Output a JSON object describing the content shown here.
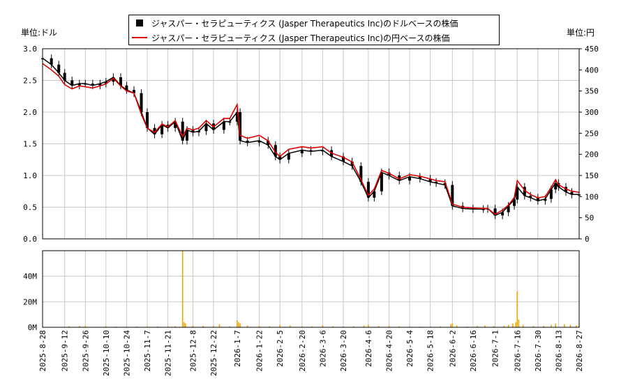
{
  "legend": {
    "series_usd": "ジャスパー・セラピューティクス (Jasper Therapeutics Inc)のドルベースの株価",
    "series_jpy": "ジャスパー・セラピューティクス (Jasper Therapeutics Inc)の円ベースの株価"
  },
  "units": {
    "left": "単位:ドル",
    "right": "単位:円"
  },
  "colors": {
    "usd_candles": "#000000",
    "jpy_line": "#e00000",
    "volume": "#f5a300",
    "grid": "#c8c8c8"
  },
  "chart_data": [
    {
      "type": "line",
      "description_series": [
        "USD candlestick price",
        "JPY line price"
      ],
      "x_ticks": [
        "2025-8-28",
        "2025-9-12",
        "2025-9-26",
        "2025-10-10",
        "2025-10-24",
        "2025-11-7",
        "2025-11-21",
        "2025-12-8",
        "2025-12-22",
        "2026-1-7",
        "2026-1-22",
        "2026-2-5",
        "2026-2-20",
        "2026-3-6",
        "2026-3-20",
        "2026-4-6",
        "2026-4-20",
        "2026-5-4",
        "2026-5-18",
        "2026-6-2",
        "2026-6-16",
        "2026-7-1",
        "2026-7-16",
        "2026-7-30",
        "2026-8-13",
        "2026-8-27"
      ],
      "y_left_ticks": [
        "0.0",
        "0.5",
        "1.0",
        "1.5",
        "2.0",
        "2.5",
        "3.0"
      ],
      "y_left_lim": [
        0,
        3.0
      ],
      "y_right_ticks": [
        "0",
        "50",
        "100",
        "150",
        "200",
        "250",
        "300",
        "350",
        "400",
        "450"
      ],
      "y_right_lim": [
        0,
        450
      ],
      "series": [
        {
          "name": "ジャスパー・セラピューティクス (Jasper Therapeutics Inc)のドルベースの株価",
          "axis": "left",
          "points": [
            [
              "2025-8-28",
              2.85
            ],
            [
              "2025-9-3",
              2.75
            ],
            [
              "2025-9-8",
              2.62
            ],
            [
              "2025-9-12",
              2.5
            ],
            [
              "2025-9-17",
              2.42
            ],
            [
              "2025-9-22",
              2.45
            ],
            [
              "2025-9-26",
              2.45
            ],
            [
              "2025-10-1",
              2.42
            ],
            [
              "2025-10-6",
              2.45
            ],
            [
              "2025-10-10",
              2.48
            ],
            [
              "2025-10-15",
              2.55
            ],
            [
              "2025-10-20",
              2.42
            ],
            [
              "2025-10-24",
              2.35
            ],
            [
              "2025-10-29",
              2.3
            ],
            [
              "2025-11-3",
              2.0
            ],
            [
              "2025-11-7",
              1.75
            ],
            [
              "2025-11-12",
              1.65
            ],
            [
              "2025-11-17",
              1.8
            ],
            [
              "2025-11-21",
              1.75
            ],
            [
              "2025-11-26",
              1.85
            ],
            [
              "2025-12-1",
              1.55
            ],
            [
              "2025-12-4",
              1.72
            ],
            [
              "2025-12-8",
              1.68
            ],
            [
              "2025-12-12",
              1.7
            ],
            [
              "2025-12-17",
              1.82
            ],
            [
              "2025-12-22",
              1.72
            ],
            [
              "2025-12-29",
              1.85
            ],
            [
              "2026-1-2",
              1.85
            ],
            [
              "2026-1-7",
              2.0
            ],
            [
              "2026-1-9",
              1.55
            ],
            [
              "2026-1-14",
              1.52
            ],
            [
              "2026-1-22",
              1.55
            ],
            [
              "2026-1-28",
              1.48
            ],
            [
              "2026-2-2",
              1.3
            ],
            [
              "2026-2-5",
              1.25
            ],
            [
              "2026-2-11",
              1.35
            ],
            [
              "2026-2-20",
              1.4
            ],
            [
              "2026-2-26",
              1.38
            ],
            [
              "2026-3-6",
              1.4
            ],
            [
              "2026-3-12",
              1.3
            ],
            [
              "2026-3-20",
              1.22
            ],
            [
              "2026-3-26",
              1.15
            ],
            [
              "2026-4-1",
              0.9
            ],
            [
              "2026-4-6",
              0.65
            ],
            [
              "2026-4-10",
              0.75
            ],
            [
              "2026-4-15",
              1.05
            ],
            [
              "2026-4-20",
              1.0
            ],
            [
              "2026-4-27",
              0.92
            ],
            [
              "2026-5-4",
              0.98
            ],
            [
              "2026-5-11",
              0.95
            ],
            [
              "2026-5-18",
              0.9
            ],
            [
              "2026-5-22",
              0.88
            ],
            [
              "2026-5-28",
              0.85
            ],
            [
              "2026-6-2",
              0.52
            ],
            [
              "2026-6-9",
              0.48
            ],
            [
              "2026-6-16",
              0.47
            ],
            [
              "2026-6-23",
              0.47
            ],
            [
              "2026-6-26",
              0.48
            ],
            [
              "2026-7-1",
              0.37
            ],
            [
              "2026-7-6",
              0.42
            ],
            [
              "2026-7-10",
              0.52
            ],
            [
              "2026-7-14",
              0.62
            ],
            [
              "2026-7-16",
              0.82
            ],
            [
              "2026-7-21",
              0.68
            ],
            [
              "2026-7-25",
              0.65
            ],
            [
              "2026-7-30",
              0.6
            ],
            [
              "2026-8-4",
              0.63
            ],
            [
              "2026-8-8",
              0.78
            ],
            [
              "2026-8-11",
              0.88
            ],
            [
              "2026-8-13",
              0.82
            ],
            [
              "2026-8-18",
              0.74
            ],
            [
              "2026-8-22",
              0.7
            ],
            [
              "2026-8-27",
              0.7
            ]
          ]
        },
        {
          "name": "ジャスパー・セラピューティクス (Jasper Therapeutics Inc)の円ベースの株価",
          "axis": "right",
          "points": [
            [
              "2025-8-28",
              415
            ],
            [
              "2025-9-3",
              400
            ],
            [
              "2025-9-8",
              385
            ],
            [
              "2025-9-12",
              365
            ],
            [
              "2025-9-17",
              355
            ],
            [
              "2025-9-22",
              362
            ],
            [
              "2025-9-26",
              360
            ],
            [
              "2025-10-1",
              357
            ],
            [
              "2025-10-6",
              362
            ],
            [
              "2025-10-10",
              367
            ],
            [
              "2025-10-15",
              380
            ],
            [
              "2025-10-20",
              362
            ],
            [
              "2025-10-24",
              350
            ],
            [
              "2025-10-29",
              345
            ],
            [
              "2025-11-3",
              295
            ],
            [
              "2025-11-7",
              262
            ],
            [
              "2025-11-12",
              252
            ],
            [
              "2025-11-17",
              272
            ],
            [
              "2025-11-21",
              265
            ],
            [
              "2025-11-26",
              280
            ],
            [
              "2025-12-1",
              242
            ],
            [
              "2025-12-4",
              262
            ],
            [
              "2025-12-8",
              258
            ],
            [
              "2025-12-12",
              262
            ],
            [
              "2025-12-17",
              280
            ],
            [
              "2025-12-22",
              265
            ],
            [
              "2025-12-29",
              285
            ],
            [
              "2026-1-2",
              285
            ],
            [
              "2026-1-7",
              318
            ],
            [
              "2026-1-9",
              245
            ],
            [
              "2026-1-14",
              238
            ],
            [
              "2026-1-22",
              245
            ],
            [
              "2026-1-28",
              232
            ],
            [
              "2026-2-2",
              205
            ],
            [
              "2026-2-5",
              195
            ],
            [
              "2026-2-11",
              212
            ],
            [
              "2026-2-20",
              218
            ],
            [
              "2026-2-26",
              215
            ],
            [
              "2026-3-6",
              218
            ],
            [
              "2026-3-12",
              203
            ],
            [
              "2026-3-20",
              193
            ],
            [
              "2026-3-26",
              182
            ],
            [
              "2026-4-1",
              140
            ],
            [
              "2026-4-6",
              103
            ],
            [
              "2026-4-10",
              118
            ],
            [
              "2026-4-15",
              162
            ],
            [
              "2026-4-20",
              155
            ],
            [
              "2026-4-27",
              142
            ],
            [
              "2026-5-4",
              152
            ],
            [
              "2026-5-11",
              148
            ],
            [
              "2026-5-18",
              142
            ],
            [
              "2026-5-22",
              138
            ],
            [
              "2026-5-28",
              135
            ],
            [
              "2026-6-2",
              82
            ],
            [
              "2026-6-9",
              75
            ],
            [
              "2026-6-16",
              73
            ],
            [
              "2026-6-23",
              72
            ],
            [
              "2026-6-26",
              72
            ],
            [
              "2026-7-1",
              58
            ],
            [
              "2026-7-6",
              68
            ],
            [
              "2026-7-10",
              80
            ],
            [
              "2026-7-14",
              98
            ],
            [
              "2026-7-16",
              138
            ],
            [
              "2026-7-21",
              115
            ],
            [
              "2026-7-25",
              105
            ],
            [
              "2026-7-30",
              97
            ],
            [
              "2026-8-4",
              100
            ],
            [
              "2026-8-8",
              122
            ],
            [
              "2026-8-11",
              140
            ],
            [
              "2026-8-13",
              128
            ],
            [
              "2026-8-18",
              118
            ],
            [
              "2026-8-22",
              113
            ],
            [
              "2026-8-27",
              110
            ]
          ]
        }
      ]
    },
    {
      "type": "bar",
      "y_ticks": [
        "0M",
        "20M",
        "40M"
      ],
      "ylim": [
        0,
        60
      ],
      "y_unit": "M",
      "series": [
        {
          "name": "volume",
          "points": [
            [
              "2025-8-28",
              0.2
            ],
            [
              "2025-9-5",
              0.3
            ],
            [
              "2025-9-15",
              0.8
            ],
            [
              "2025-9-22",
              1.0
            ],
            [
              "2025-9-26",
              1.2
            ],
            [
              "2025-10-3",
              0.4
            ],
            [
              "2025-10-10",
              0.9
            ],
            [
              "2025-10-17",
              0.5
            ],
            [
              "2025-10-24",
              0.4
            ],
            [
              "2025-10-31",
              0.6
            ],
            [
              "2025-11-7",
              0.8
            ],
            [
              "2025-11-14",
              0.7
            ],
            [
              "2025-11-21",
              0.6
            ],
            [
              "2025-11-26",
              0.9
            ],
            [
              "2025-12-1",
              60
            ],
            [
              "2025-12-2",
              4
            ],
            [
              "2025-12-3",
              3
            ],
            [
              "2025-12-8",
              1.5
            ],
            [
              "2025-12-15",
              1.2
            ],
            [
              "2025-12-22",
              1.0
            ],
            [
              "2025-12-26",
              2.5
            ],
            [
              "2026-1-2",
              0.8
            ],
            [
              "2026-1-7",
              5.5
            ],
            [
              "2026-1-8",
              4
            ],
            [
              "2026-1-9",
              3
            ],
            [
              "2026-1-14",
              1.5
            ],
            [
              "2026-1-22",
              1.2
            ],
            [
              "2026-1-29",
              0.9
            ],
            [
              "2026-2-5",
              1.8
            ],
            [
              "2026-2-12",
              1.5
            ],
            [
              "2026-2-20",
              0.8
            ],
            [
              "2026-2-27",
              0.7
            ],
            [
              "2026-3-6",
              1.6
            ],
            [
              "2026-3-13",
              0.8
            ],
            [
              "2026-3-20",
              0.6
            ],
            [
              "2026-3-27",
              0.8
            ],
            [
              "2026-4-3",
              1.4
            ],
            [
              "2026-4-6",
              2.0
            ],
            [
              "2026-4-13",
              1.0
            ],
            [
              "2026-4-20",
              1.2
            ],
            [
              "2026-4-27",
              0.8
            ],
            [
              "2026-5-4",
              0.7
            ],
            [
              "2026-5-11",
              0.5
            ],
            [
              "2026-5-18",
              0.6
            ],
            [
              "2026-5-25",
              0.8
            ],
            [
              "2026-6-1",
              2.5
            ],
            [
              "2026-6-2",
              3.0
            ],
            [
              "2026-6-5",
              1.5
            ],
            [
              "2026-6-12",
              0.6
            ],
            [
              "2026-6-19",
              1.0
            ],
            [
              "2026-6-24",
              1.5
            ],
            [
              "2026-6-30",
              1.0
            ],
            [
              "2026-7-7",
              1.2
            ],
            [
              "2026-7-10",
              2.0
            ],
            [
              "2026-7-13",
              3.0
            ],
            [
              "2026-7-15",
              4.0
            ],
            [
              "2026-7-16",
              28
            ],
            [
              "2026-7-17",
              6
            ],
            [
              "2026-7-20",
              2.0
            ],
            [
              "2026-7-27",
              1.0
            ],
            [
              "2026-8-3",
              1.2
            ],
            [
              "2026-8-8",
              2.0
            ],
            [
              "2026-8-11",
              3.0
            ],
            [
              "2026-8-17",
              2.5
            ],
            [
              "2026-8-21",
              2.0
            ],
            [
              "2026-8-25",
              1.5
            ],
            [
              "2026-8-27",
              1.0
            ]
          ]
        }
      ]
    }
  ]
}
